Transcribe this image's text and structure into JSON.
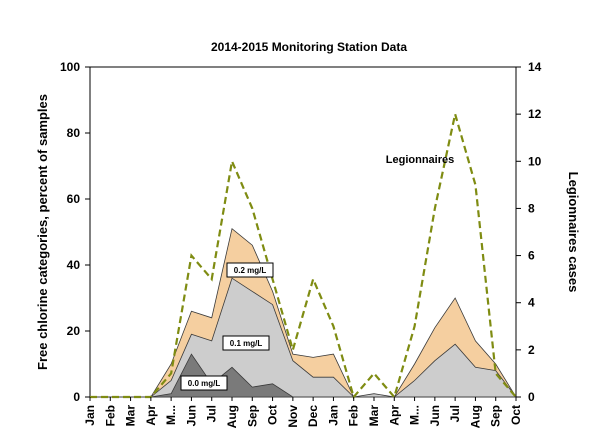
{
  "chart_data": {
    "type": "area",
    "title": "2014-2015 Monitoring  Station Data",
    "ylabel": "Free chlorine categories, percent of samples",
    "y2label": "Legionnaires cases",
    "ylim": [
      0,
      100
    ],
    "y2lim": [
      0,
      14
    ],
    "yticks": [
      "0",
      "20",
      "40",
      "60",
      "80",
      "100"
    ],
    "y2ticks": [
      "0",
      "2",
      "4",
      "6",
      "8",
      "10",
      "12",
      "14"
    ],
    "categories": [
      "Jan",
      "Feb",
      "Mar",
      "Apr",
      "M...",
      "Jun",
      "Jul",
      "Aug",
      "Sep",
      "Oct",
      "Nov",
      "Dec",
      "Jan",
      "Feb",
      "Mar",
      "Apr",
      "M...",
      "Jun",
      "Jul",
      "Aug",
      "Sep",
      "Oct"
    ],
    "series": [
      {
        "name": "0.2 mg/L",
        "type": "area",
        "axis": "left",
        "color": "#f5cfa0",
        "values": [
          0,
          0,
          0,
          0,
          10,
          26,
          24,
          51,
          46,
          32,
          13,
          12,
          13,
          0,
          0,
          0,
          10,
          21,
          30,
          17,
          10,
          0
        ]
      },
      {
        "name": "0.1 mg/L",
        "type": "area",
        "axis": "left",
        "color": "#cdcdcd",
        "values": [
          0,
          0,
          0,
          0,
          5,
          19,
          17,
          36,
          32,
          28,
          11,
          6,
          6,
          0,
          1,
          0,
          5,
          11,
          16,
          9,
          8,
          0
        ]
      },
      {
        "name": "0.0 mg/L",
        "type": "area",
        "axis": "left",
        "color": "#7a7a7a",
        "values": [
          0,
          0,
          0,
          0,
          1,
          13,
          4,
          9,
          3,
          4,
          0,
          0,
          0,
          0,
          0,
          0,
          0,
          0,
          0,
          0,
          0,
          0
        ]
      },
      {
        "name": "Legionnaires",
        "type": "line",
        "axis": "right",
        "color": "#7f8c12",
        "dashed": true,
        "values": [
          0,
          0,
          0,
          0,
          1,
          6,
          5,
          10,
          8,
          5,
          2,
          5,
          3,
          0,
          1,
          0,
          3,
          8,
          12,
          9,
          1,
          0
        ]
      }
    ],
    "grid": false,
    "legend": "none"
  }
}
